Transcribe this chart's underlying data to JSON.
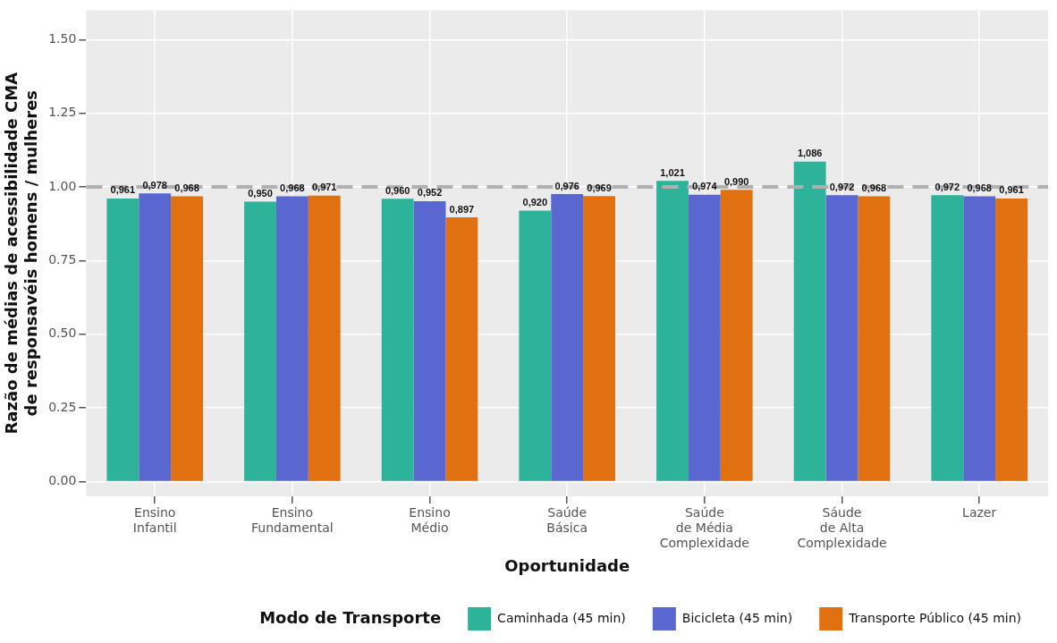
{
  "chart_data": {
    "type": "bar",
    "xlabel": "Oportunidade",
    "ylabel": "Razão de médias de acessibilidade CMA\nde responsavéis homens / mulheres",
    "legend_title": "Modo de Transporte",
    "categories": [
      "Ensino\nInfantil",
      "Ensino\nFundamental",
      "Ensino\nMédio",
      "Saúde\nBásica",
      "Saúde\nde Média\nComplexidade",
      "Sáude\nde Alta\nComplexidade",
      "Lazer"
    ],
    "series": [
      {
        "name": "Caminhada (45 min)",
        "color": "#2db39a",
        "values": [
          0.961,
          0.95,
          0.96,
          0.92,
          1.021,
          1.086,
          0.972
        ],
        "value_labels": [
          "0,961",
          "0,950",
          "0,960",
          "0,920",
          "1,021",
          "1,086",
          "0,972"
        ]
      },
      {
        "name": "Bicicleta (45 min)",
        "color": "#5a67d0",
        "values": [
          0.978,
          0.968,
          0.952,
          0.976,
          0.974,
          0.972,
          0.968
        ],
        "value_labels": [
          "0,978",
          "0,968",
          "0,952",
          "0,976",
          "0,974",
          "0,972",
          "0,968"
        ]
      },
      {
        "name": "Transporte Público (45 min)",
        "color": "#e07010",
        "values": [
          0.968,
          0.971,
          0.897,
          0.969,
          0.99,
          0.968,
          0.961
        ],
        "value_labels": [
          "0,968",
          "0,971",
          "0,897",
          "0,969",
          "0,990",
          "0,968",
          "0,961"
        ]
      }
    ],
    "ylim": [
      -0.05,
      1.6
    ],
    "yticks": [
      {
        "value": 0,
        "label": "0.00"
      },
      {
        "value": 0.25,
        "label": "0.25"
      },
      {
        "value": 0.5,
        "label": "0.50"
      },
      {
        "value": 0.75,
        "label": "0.75"
      },
      {
        "value": 1,
        "label": "1.00"
      },
      {
        "value": 1.25,
        "label": "1.25"
      },
      {
        "value": 1.5,
        "label": "1.50"
      }
    ],
    "grid": true,
    "legend": "bottom",
    "ref_lines": [
      {
        "axis": "y",
        "value": 1,
        "color": "#b0b0b0",
        "line_style": "dashed"
      }
    ]
  }
}
